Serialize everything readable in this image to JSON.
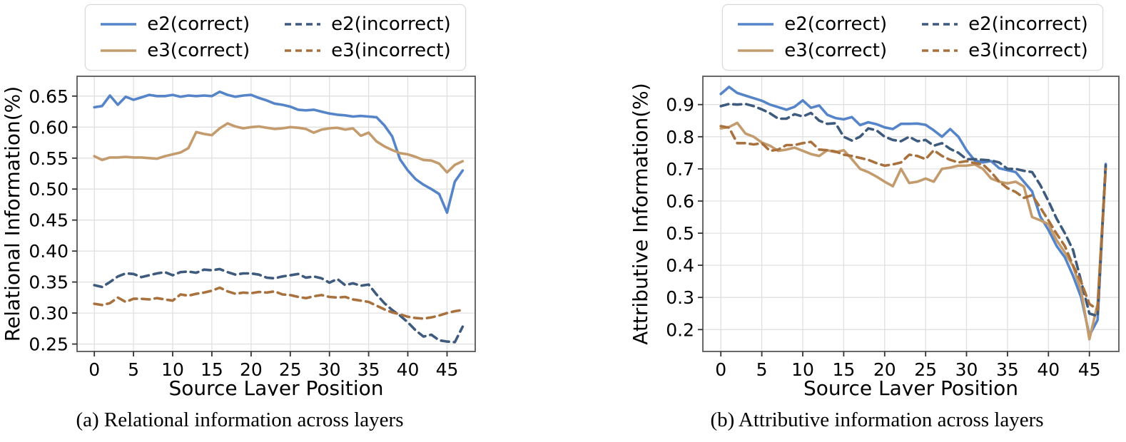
{
  "captions": {
    "a": "(a) Relational information across layers",
    "b": "(b) Attributive information across layers"
  },
  "legend": {
    "items": [
      {
        "id": "e2-correct",
        "label": "e2(correct)",
        "color": "#5585c8",
        "dashed": false
      },
      {
        "id": "e2-incorrect",
        "label": "e2(incorrect)",
        "color": "#3e5a7d",
        "dashed": true
      },
      {
        "id": "e3-correct",
        "label": "e3(correct)",
        "color": "#c39b6d",
        "dashed": false
      },
      {
        "id": "e3-incorrect",
        "label": "e3(incorrect)",
        "color": "#a8713e",
        "dashed": true
      }
    ]
  },
  "colors": {
    "e2_correct": "#5585c8",
    "e3_correct": "#c39b6d",
    "e2_incorrect": "#3e5a7d",
    "e3_incorrect": "#a8713e",
    "grid": "#e0e0e0",
    "frame": "#58585a"
  },
  "chart_data": [
    {
      "type": "line",
      "title": "",
      "xlabel": "Source Layer Position",
      "ylabel": "Relational Information(%)",
      "xlim": [
        -2.2,
        48.6
      ],
      "ylim": [
        0.238,
        0.682
      ],
      "xticks": [
        "0",
        "5",
        "10",
        "15",
        "20",
        "25",
        "30",
        "35",
        "40",
        "45"
      ],
      "yticks": [
        "0.25",
        "0.30",
        "0.35",
        "0.40",
        "0.45",
        "0.50",
        "0.55",
        "0.60",
        "0.65"
      ],
      "grid": true,
      "legend_position": "above",
      "x_start": 0,
      "x_step": 1,
      "series": [
        {
          "id": "e2-correct",
          "name": "e2(correct)",
          "color": "#5585c8",
          "dashed": false,
          "values": [
            0.632,
            0.634,
            0.651,
            0.636,
            0.649,
            0.644,
            0.648,
            0.652,
            0.65,
            0.65,
            0.652,
            0.649,
            0.651,
            0.65,
            0.651,
            0.65,
            0.657,
            0.652,
            0.649,
            0.651,
            0.652,
            0.647,
            0.643,
            0.638,
            0.636,
            0.633,
            0.628,
            0.627,
            0.628,
            0.625,
            0.622,
            0.62,
            0.619,
            0.617,
            0.618,
            0.617,
            0.616,
            0.603,
            0.585,
            0.548,
            0.53,
            0.516,
            0.507,
            0.5,
            0.492,
            0.462,
            0.512,
            0.53
          ]
        },
        {
          "id": "e3-correct",
          "name": "e3(correct)",
          "color": "#c39b6d",
          "dashed": false,
          "values": [
            0.553,
            0.547,
            0.551,
            0.551,
            0.552,
            0.551,
            0.551,
            0.55,
            0.549,
            0.553,
            0.556,
            0.559,
            0.566,
            0.592,
            0.589,
            0.587,
            0.598,
            0.606,
            0.601,
            0.598,
            0.6,
            0.601,
            0.599,
            0.597,
            0.598,
            0.6,
            0.599,
            0.597,
            0.591,
            0.596,
            0.598,
            0.599,
            0.596,
            0.598,
            0.586,
            0.591,
            0.577,
            0.569,
            0.563,
            0.558,
            0.556,
            0.552,
            0.547,
            0.546,
            0.541,
            0.527,
            0.539,
            0.545
          ]
        },
        {
          "id": "e2-incorrect",
          "name": "e2(incorrect)",
          "color": "#3e5a7d",
          "dashed": true,
          "values": [
            0.345,
            0.342,
            0.35,
            0.359,
            0.364,
            0.363,
            0.358,
            0.361,
            0.364,
            0.366,
            0.361,
            0.366,
            0.367,
            0.365,
            0.37,
            0.369,
            0.371,
            0.366,
            0.362,
            0.364,
            0.364,
            0.362,
            0.357,
            0.356,
            0.359,
            0.361,
            0.363,
            0.357,
            0.359,
            0.356,
            0.349,
            0.355,
            0.345,
            0.348,
            0.344,
            0.346,
            0.33,
            0.316,
            0.305,
            0.296,
            0.285,
            0.272,
            0.262,
            0.265,
            0.256,
            0.254,
            0.253,
            0.278
          ]
        },
        {
          "id": "e3-incorrect",
          "name": "e3(incorrect)",
          "color": "#a8713e",
          "dashed": true,
          "values": [
            0.315,
            0.313,
            0.316,
            0.325,
            0.318,
            0.323,
            0.323,
            0.322,
            0.324,
            0.322,
            0.32,
            0.33,
            0.328,
            0.331,
            0.333,
            0.336,
            0.341,
            0.335,
            0.331,
            0.333,
            0.332,
            0.334,
            0.333,
            0.335,
            0.33,
            0.329,
            0.326,
            0.324,
            0.327,
            0.329,
            0.326,
            0.325,
            0.326,
            0.322,
            0.32,
            0.318,
            0.312,
            0.306,
            0.301,
            0.298,
            0.294,
            0.292,
            0.291,
            0.293,
            0.296,
            0.3,
            0.303,
            0.305
          ]
        }
      ]
    },
    {
      "type": "line",
      "title": "",
      "xlabel": "Source Layer Position",
      "ylabel": "Attributive Information(%)",
      "xlim": [
        -2.2,
        48.6
      ],
      "ylim": [
        0.132,
        0.988
      ],
      "xticks": [
        "0",
        "5",
        "10",
        "15",
        "20",
        "25",
        "30",
        "35",
        "40",
        "45"
      ],
      "yticks": [
        "0.2",
        "0.3",
        "0.4",
        "0.5",
        "0.6",
        "0.7",
        "0.8",
        "0.9"
      ],
      "grid": true,
      "legend_position": "above",
      "x_start": 0,
      "x_step": 1,
      "series": [
        {
          "id": "e2-correct",
          "name": "e2(correct)",
          "color": "#5585c8",
          "dashed": false,
          "values": [
            0.933,
            0.955,
            0.936,
            0.928,
            0.92,
            0.912,
            0.9,
            0.892,
            0.884,
            0.893,
            0.913,
            0.89,
            0.897,
            0.868,
            0.858,
            0.854,
            0.861,
            0.836,
            0.845,
            0.839,
            0.829,
            0.824,
            0.84,
            0.84,
            0.841,
            0.837,
            0.82,
            0.8,
            0.824,
            0.8,
            0.758,
            0.726,
            0.72,
            0.724,
            0.702,
            0.696,
            0.69,
            0.66,
            0.63,
            0.552,
            0.51,
            0.46,
            0.425,
            0.368,
            0.3,
            0.182,
            0.23,
            0.715
          ]
        },
        {
          "id": "e3-correct",
          "name": "e3(correct)",
          "color": "#c39b6d",
          "dashed": false,
          "values": [
            0.826,
            0.83,
            0.843,
            0.81,
            0.8,
            0.782,
            0.772,
            0.756,
            0.76,
            0.766,
            0.756,
            0.746,
            0.74,
            0.758,
            0.752,
            0.758,
            0.73,
            0.7,
            0.69,
            0.676,
            0.66,
            0.646,
            0.7,
            0.656,
            0.66,
            0.67,
            0.66,
            0.7,
            0.704,
            0.71,
            0.71,
            0.714,
            0.7,
            0.67,
            0.66,
            0.655,
            0.66,
            0.645,
            0.55,
            0.54,
            0.528,
            0.478,
            0.44,
            0.398,
            0.32,
            0.17,
            0.28,
            0.71
          ]
        },
        {
          "id": "e2-incorrect",
          "name": "e2(incorrect)",
          "color": "#3e5a7d",
          "dashed": true,
          "values": [
            0.895,
            0.902,
            0.9,
            0.902,
            0.895,
            0.885,
            0.873,
            0.856,
            0.856,
            0.87,
            0.863,
            0.874,
            0.85,
            0.84,
            0.842,
            0.8,
            0.788,
            0.8,
            0.826,
            0.82,
            0.8,
            0.79,
            0.786,
            0.8,
            0.786,
            0.79,
            0.772,
            0.78,
            0.762,
            0.75,
            0.73,
            0.73,
            0.728,
            0.726,
            0.72,
            0.7,
            0.7,
            0.694,
            0.69,
            0.65,
            0.6,
            0.545,
            0.5,
            0.448,
            0.35,
            0.25,
            0.242,
            0.715
          ]
        },
        {
          "id": "e3-incorrect",
          "name": "e3(incorrect)",
          "color": "#a8713e",
          "dashed": true,
          "values": [
            0.833,
            0.828,
            0.78,
            0.78,
            0.776,
            0.78,
            0.756,
            0.76,
            0.774,
            0.774,
            0.78,
            0.784,
            0.76,
            0.758,
            0.754,
            0.744,
            0.74,
            0.734,
            0.728,
            0.718,
            0.71,
            0.714,
            0.72,
            0.744,
            0.74,
            0.73,
            0.758,
            0.74,
            0.728,
            0.72,
            0.724,
            0.718,
            0.714,
            0.69,
            0.66,
            0.64,
            0.628,
            0.61,
            0.618,
            0.58,
            0.54,
            0.498,
            0.46,
            0.4,
            0.348,
            0.28,
            0.262,
            0.7
          ]
        }
      ]
    }
  ]
}
